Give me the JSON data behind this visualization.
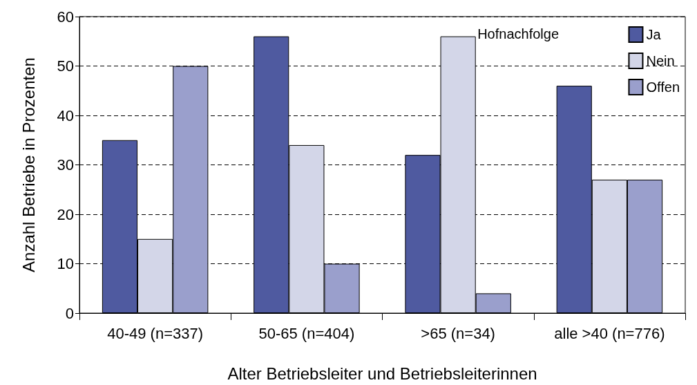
{
  "chart_data": {
    "type": "bar",
    "xlabel": "Alter Betriebsleiter und Betriebsleiterinnen",
    "ylabel": "Anzahl Betriebe in Prozenten",
    "legend_title": "Hofnachfolge",
    "categories": [
      "40-49 (n=337)",
      "50-65 (n=404)",
      ">65 (n=34)",
      "alle >40 (n=776)"
    ],
    "series": [
      {
        "name": "Ja",
        "color": "#4f5aa0",
        "values": [
          35,
          56,
          32,
          46
        ]
      },
      {
        "name": "Nein",
        "color": "#d3d6e8",
        "values": [
          15,
          34,
          56,
          27
        ]
      },
      {
        "name": "Offen",
        "color": "#9a9fcc",
        "values": [
          50,
          10,
          4,
          27
        ]
      }
    ],
    "ylim": [
      0,
      60
    ],
    "yticks": [
      0,
      10,
      20,
      30,
      40,
      50,
      60
    ],
    "grid": "y",
    "legend": "top right"
  }
}
